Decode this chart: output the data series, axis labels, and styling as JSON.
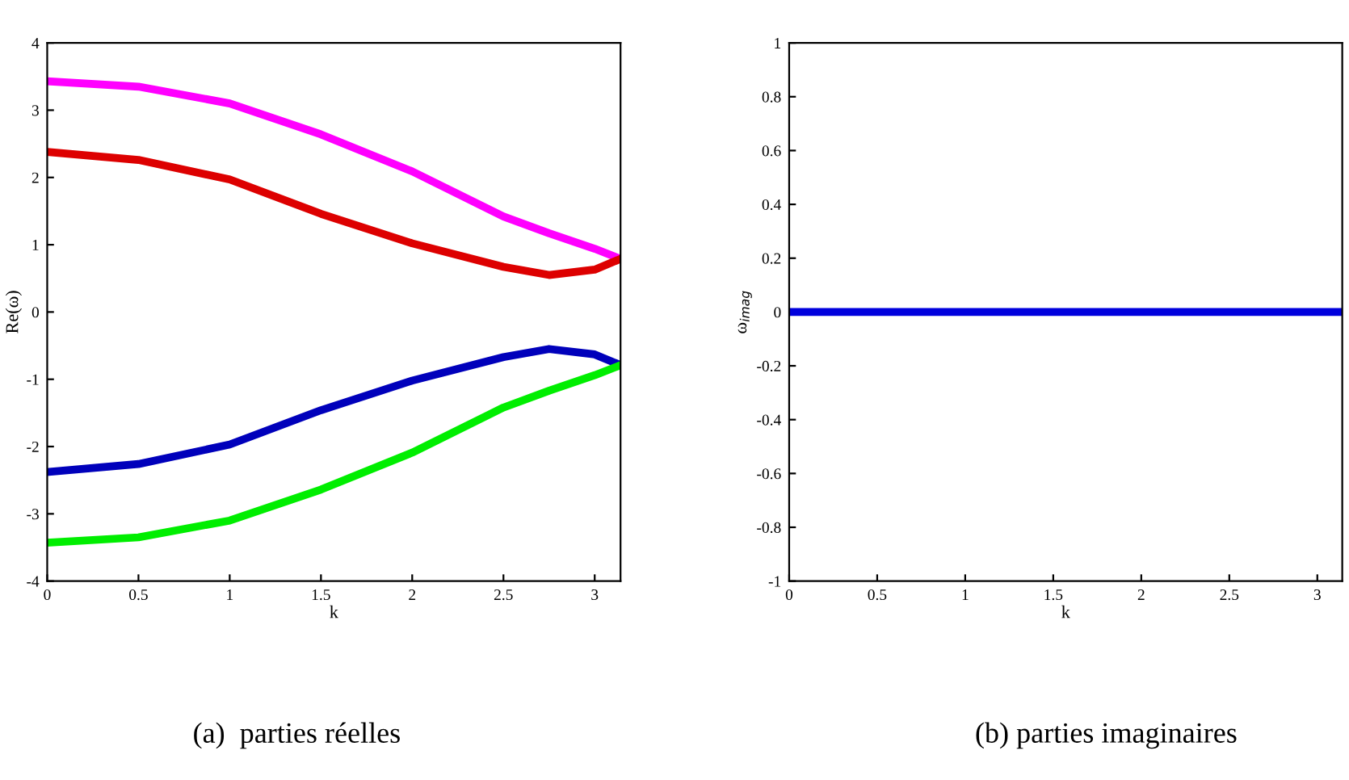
{
  "chart_data": [
    {
      "type": "line",
      "xlabel": "k",
      "ylabel": "Re(ω)",
      "annotations": [
        "(a)  parties réelles"
      ],
      "xlim": [
        0,
        3.1416
      ],
      "ylim": [
        -4,
        4
      ],
      "xticks": [
        0,
        0.5,
        1,
        1.5,
        2,
        2.5,
        3
      ],
      "yticks": [
        -4,
        -3,
        -2,
        -1,
        0,
        1,
        2,
        3,
        4
      ],
      "grid": false,
      "legend": false,
      "marker": "none",
      "line_style": "solid",
      "x": [
        0,
        0.5,
        1,
        1.5,
        2,
        2.5,
        2.75,
        3,
        3.1416
      ],
      "series": [
        {
          "color": "#ff00ff",
          "values": [
            3.43,
            3.35,
            3.1,
            2.64,
            2.09,
            1.42,
            1.17,
            0.94,
            0.79
          ]
        },
        {
          "color": "#dd0000",
          "values": [
            2.38,
            2.26,
            1.97,
            1.46,
            1.02,
            0.67,
            0.55,
            0.63,
            0.79
          ]
        },
        {
          "color": "#0000bb",
          "values": [
            -2.38,
            -2.26,
            -1.97,
            -1.46,
            -1.02,
            -0.67,
            -0.55,
            -0.63,
            -0.79
          ]
        },
        {
          "color": "#00ee00",
          "values": [
            -3.43,
            -3.35,
            -3.1,
            -2.64,
            -2.09,
            -1.42,
            -1.17,
            -0.94,
            -0.79
          ]
        }
      ]
    },
    {
      "type": "line",
      "xlabel": "k",
      "ylabel": "ω$_{imag}$",
      "annotations": [
        "(b) parties imaginaires"
      ],
      "xlim": [
        0,
        3.1416
      ],
      "ylim": [
        -1,
        1
      ],
      "xticks": [
        0,
        0.5,
        1,
        1.5,
        2,
        2.5,
        3
      ],
      "yticks": [
        -1,
        {
          "value": -0.8,
          "label": "-0.8"
        },
        {
          "value": -0.6,
          "label": "-0.6"
        },
        {
          "value": -0.4,
          "label": "-0.4"
        },
        {
          "value": -0.2,
          "label": "-0.2"
        },
        0,
        0.2,
        0.4,
        0.6,
        0.8,
        1
      ],
      "grid": false,
      "legend": false,
      "marker": "none",
      "line_style": "solid",
      "x": [
        0,
        3.1416
      ],
      "series": [
        {
          "color": "#0000dd",
          "values": [
            0,
            0
          ]
        }
      ]
    }
  ]
}
